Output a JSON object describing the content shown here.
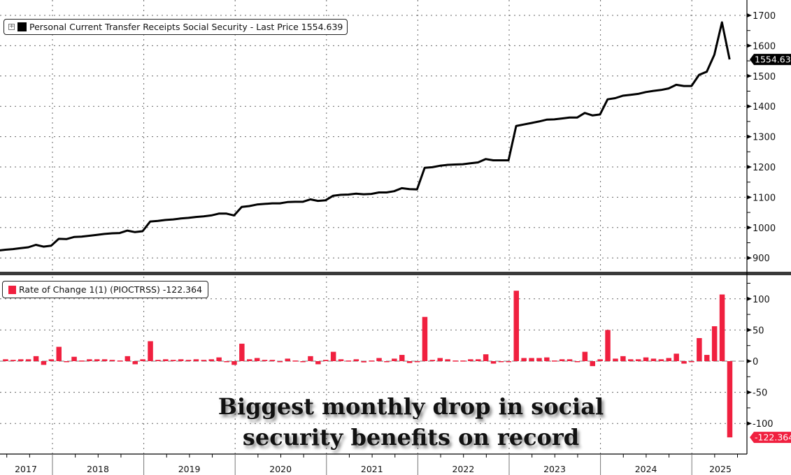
{
  "chart_data": [
    {
      "type": "line",
      "title": "Personal Current Transfer Receipts Social Security - Last Price 1554.639",
      "legend_label": "Personal Current Transfer Receipts Social Security - Last Price 1554.639",
      "legend_placement": "top-left",
      "color": "#000000",
      "last_value_label": "1554.639",
      "ylim": [
        860,
        1740
      ],
      "yticks": [
        900,
        1000,
        1100,
        1200,
        1300,
        1400,
        1500,
        1600,
        1700
      ],
      "ytick_labels": [
        "900",
        "1000",
        "1100",
        "1200",
        "1300",
        "1400",
        "1500",
        "1600",
        "1700"
      ],
      "x_start": "2017-05",
      "x_frequency": "monthly",
      "values": [
        924,
        927,
        929,
        932,
        935,
        943,
        937,
        940,
        963,
        962,
        969,
        970,
        973,
        976,
        979,
        981,
        982,
        990,
        985,
        988,
        1020,
        1022,
        1025,
        1027,
        1030,
        1032,
        1035,
        1037,
        1040,
        1046,
        1046,
        1040,
        1068,
        1071,
        1076,
        1078,
        1080,
        1080,
        1084,
        1085,
        1085,
        1093,
        1088,
        1090,
        1105,
        1108,
        1109,
        1112,
        1110,
        1111,
        1116,
        1116,
        1120,
        1130,
        1127,
        1126,
        1197,
        1199,
        1204,
        1207,
        1208,
        1209,
        1212,
        1215,
        1226,
        1222,
        1222,
        1222,
        1335,
        1340,
        1345,
        1350,
        1356,
        1357,
        1360,
        1363,
        1363,
        1378,
        1370,
        1373,
        1423,
        1427,
        1435,
        1438,
        1441,
        1447,
        1451,
        1454,
        1459,
        1471,
        1467,
        1467,
        1504,
        1514,
        1570,
        1677,
        1554.639
      ],
      "grid": true
    },
    {
      "type": "bar",
      "title": "Rate of Change 1(1) (PIOCTRSS) -122.364",
      "legend_label": "Rate of Change 1(1) (PIOCTRSS) -122.364",
      "legend_placement": "top-left",
      "color": "#f0203f",
      "last_value_label": "-122.364",
      "ylim": [
        -140,
        130
      ],
      "yticks": [
        -100,
        -50,
        0,
        50,
        100
      ],
      "ytick_labels": [
        "-100",
        "-50",
        "0",
        "50",
        "100"
      ],
      "x_start": "2017-06",
      "x_frequency": "monthly",
      "values": [
        3,
        2,
        3,
        3,
        8,
        -6,
        3,
        23,
        -1,
        7,
        1,
        3,
        3,
        3,
        2,
        1,
        8,
        -5,
        3,
        32,
        2,
        3,
        2,
        3,
        2,
        3,
        2,
        3,
        6,
        0,
        -6,
        28,
        3,
        5,
        2,
        2,
        0,
        4,
        1,
        0,
        8,
        -5,
        2,
        15,
        3,
        1,
        3,
        -2,
        1,
        5,
        0,
        4,
        10,
        -3,
        -1,
        71,
        2,
        5,
        3,
        1,
        1,
        3,
        3,
        11,
        -4,
        0,
        0,
        113,
        5,
        5,
        5,
        6,
        1,
        3,
        3,
        0,
        15,
        -8,
        3,
        50,
        4,
        8,
        3,
        3,
        6,
        4,
        3,
        5,
        12,
        -4,
        0,
        37,
        10,
        56,
        107,
        -122.364
      ],
      "grid": true
    }
  ],
  "x_axis": {
    "labels": [
      "2017",
      "2018",
      "2019",
      "2020",
      "2021",
      "2022",
      "2023",
      "2024",
      "2025"
    ]
  },
  "annotation": {
    "line1": "Biggest monthly drop in social",
    "line2": "security benefits on record"
  },
  "legend_icons": {
    "expand": "plus-box-icon"
  }
}
